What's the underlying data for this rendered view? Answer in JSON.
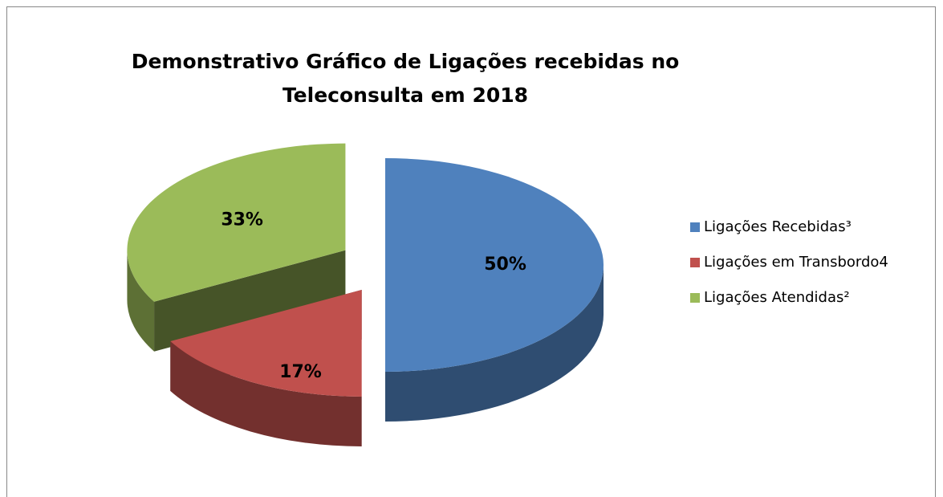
{
  "chart_data": {
    "type": "pie",
    "title": "Demonstrativo Gráfico de Ligações recebidas no Teleconsulta em 2018",
    "categories": [
      "Ligações Recebidas³",
      "Ligações em Transbordo4",
      "Ligações Atendidas²"
    ],
    "values": [
      50,
      17,
      33
    ],
    "value_labels": [
      "50%",
      "17%",
      "33%"
    ],
    "colors": [
      "#4f81bd",
      "#c0504d",
      "#9bbb59"
    ],
    "legend": "right"
  }
}
